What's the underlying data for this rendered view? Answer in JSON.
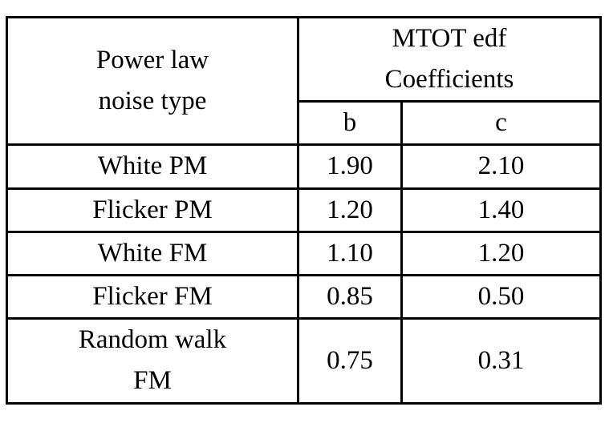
{
  "page": {
    "background": "#ffffff",
    "text_color": "#000000",
    "border_color": "#000000"
  },
  "table": {
    "header": {
      "noise_type_label": "Power law noise type",
      "coefficients_label": "MTOT edf Coefficients",
      "col_b_label": "b",
      "col_c_label": "c"
    },
    "rows": [
      {
        "noise_type": "White PM",
        "b": "1.90",
        "c": "2.10"
      },
      {
        "noise_type": "Flicker PM",
        "b": "1.20",
        "c": "1.40"
      },
      {
        "noise_type": "White FM",
        "b": "1.10",
        "c": "1.20"
      },
      {
        "noise_type": "Flicker FM",
        "b": "0.85",
        "c": "0.50"
      },
      {
        "noise_type": "Random walk FM",
        "b": "0.75",
        "c": "0.31"
      }
    ]
  },
  "chart_data": {
    "type": "table",
    "title": "MTOT edf Coefficients",
    "columns": [
      "Power law noise type",
      "b",
      "c"
    ],
    "rows": [
      [
        "White PM",
        1.9,
        2.1
      ],
      [
        "Flicker PM",
        1.2,
        1.4
      ],
      [
        "White FM",
        1.1,
        1.2
      ],
      [
        "Flicker FM",
        0.85,
        0.5
      ],
      [
        "Random walk FM",
        0.75,
        0.31
      ]
    ]
  }
}
